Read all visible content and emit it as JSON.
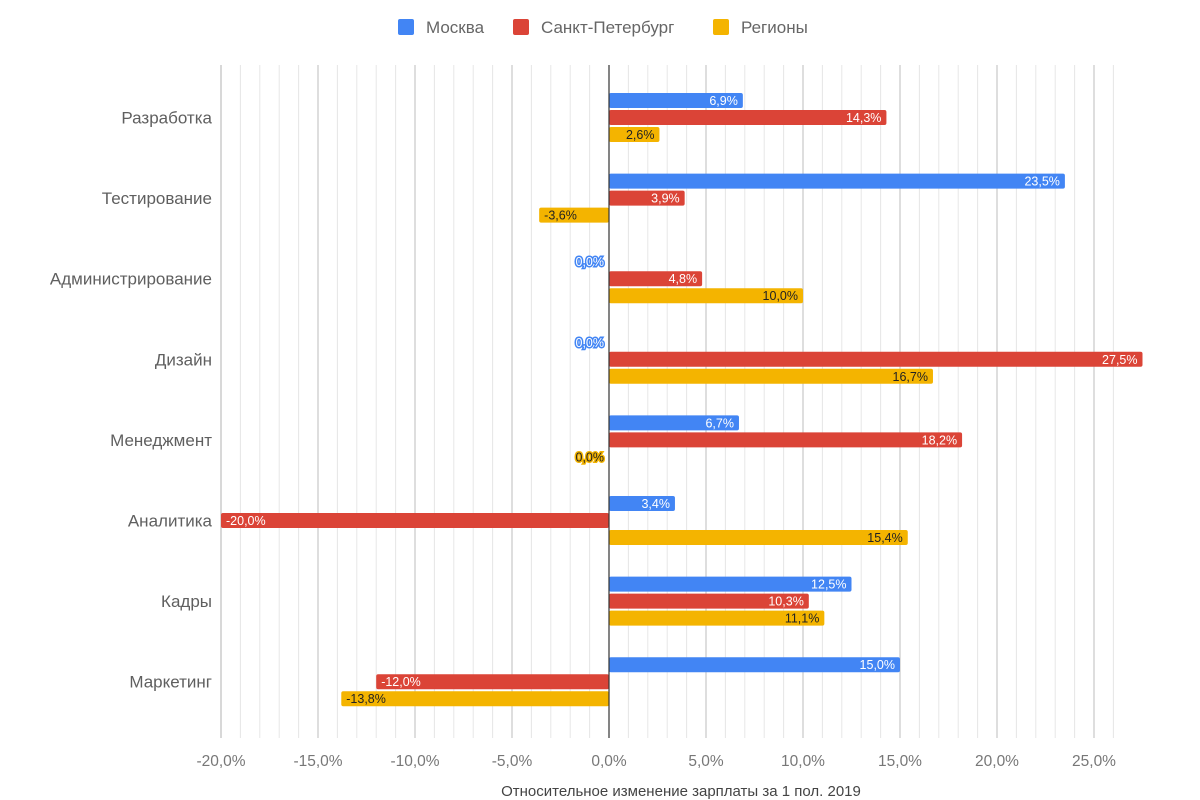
{
  "chart_data": {
    "type": "bar",
    "orientation": "horizontal",
    "title": "",
    "xlabel": "Относительное изменение зарплаты за 1 пол. 2019",
    "ylabel": "",
    "xlim": [
      -20,
      26.7
    ],
    "x_ticks": [
      -20,
      -15,
      -10,
      -5,
      0,
      5,
      10,
      15,
      20,
      25
    ],
    "x_tick_labels": [
      "-20,0%",
      "-15,0%",
      "-10,0%",
      "-5,0%",
      "0,0%",
      "5,0%",
      "10,0%",
      "15,0%",
      "20,0%",
      "25,0%"
    ],
    "grid": true,
    "legend_position": "top",
    "categories": [
      "Разработка",
      "Тестирование",
      "Администрирование",
      "Дизайн",
      "Менеджмент",
      "Аналитика",
      "Кадры",
      "Маркетинг"
    ],
    "series": [
      {
        "name": "Москва",
        "color": "#4285f4",
        "label_color": "#ffffff",
        "values": [
          6.9,
          23.5,
          0.0,
          0.0,
          6.7,
          3.4,
          12.5,
          15.0
        ],
        "labels": [
          "6,9%",
          "23,5%",
          "0,0%",
          "0,0%",
          "6,7%",
          "3,4%",
          "12,5%",
          "15,0%"
        ]
      },
      {
        "name": "Санкт-Петербург",
        "color": "#db4437",
        "label_color": "#ffffff",
        "values": [
          14.3,
          3.9,
          4.8,
          27.5,
          18.2,
          -20.0,
          10.3,
          -12.0
        ],
        "labels": [
          "14,3%",
          "3,9%",
          "4,8%",
          "27,5%",
          "18,2%",
          "-20,0%",
          "10,3%",
          "-12,0%"
        ]
      },
      {
        "name": "Регионы",
        "color": "#f4b400",
        "label_color": "#222222",
        "values": [
          2.6,
          -3.6,
          10.0,
          16.7,
          0.0,
          15.4,
          11.1,
          -13.8
        ],
        "labels": [
          "2,6%",
          "-3,6%",
          "10,0%",
          "16,7%",
          "0,0%",
          "15,4%",
          "11,1%",
          "-13,8%"
        ]
      }
    ]
  }
}
